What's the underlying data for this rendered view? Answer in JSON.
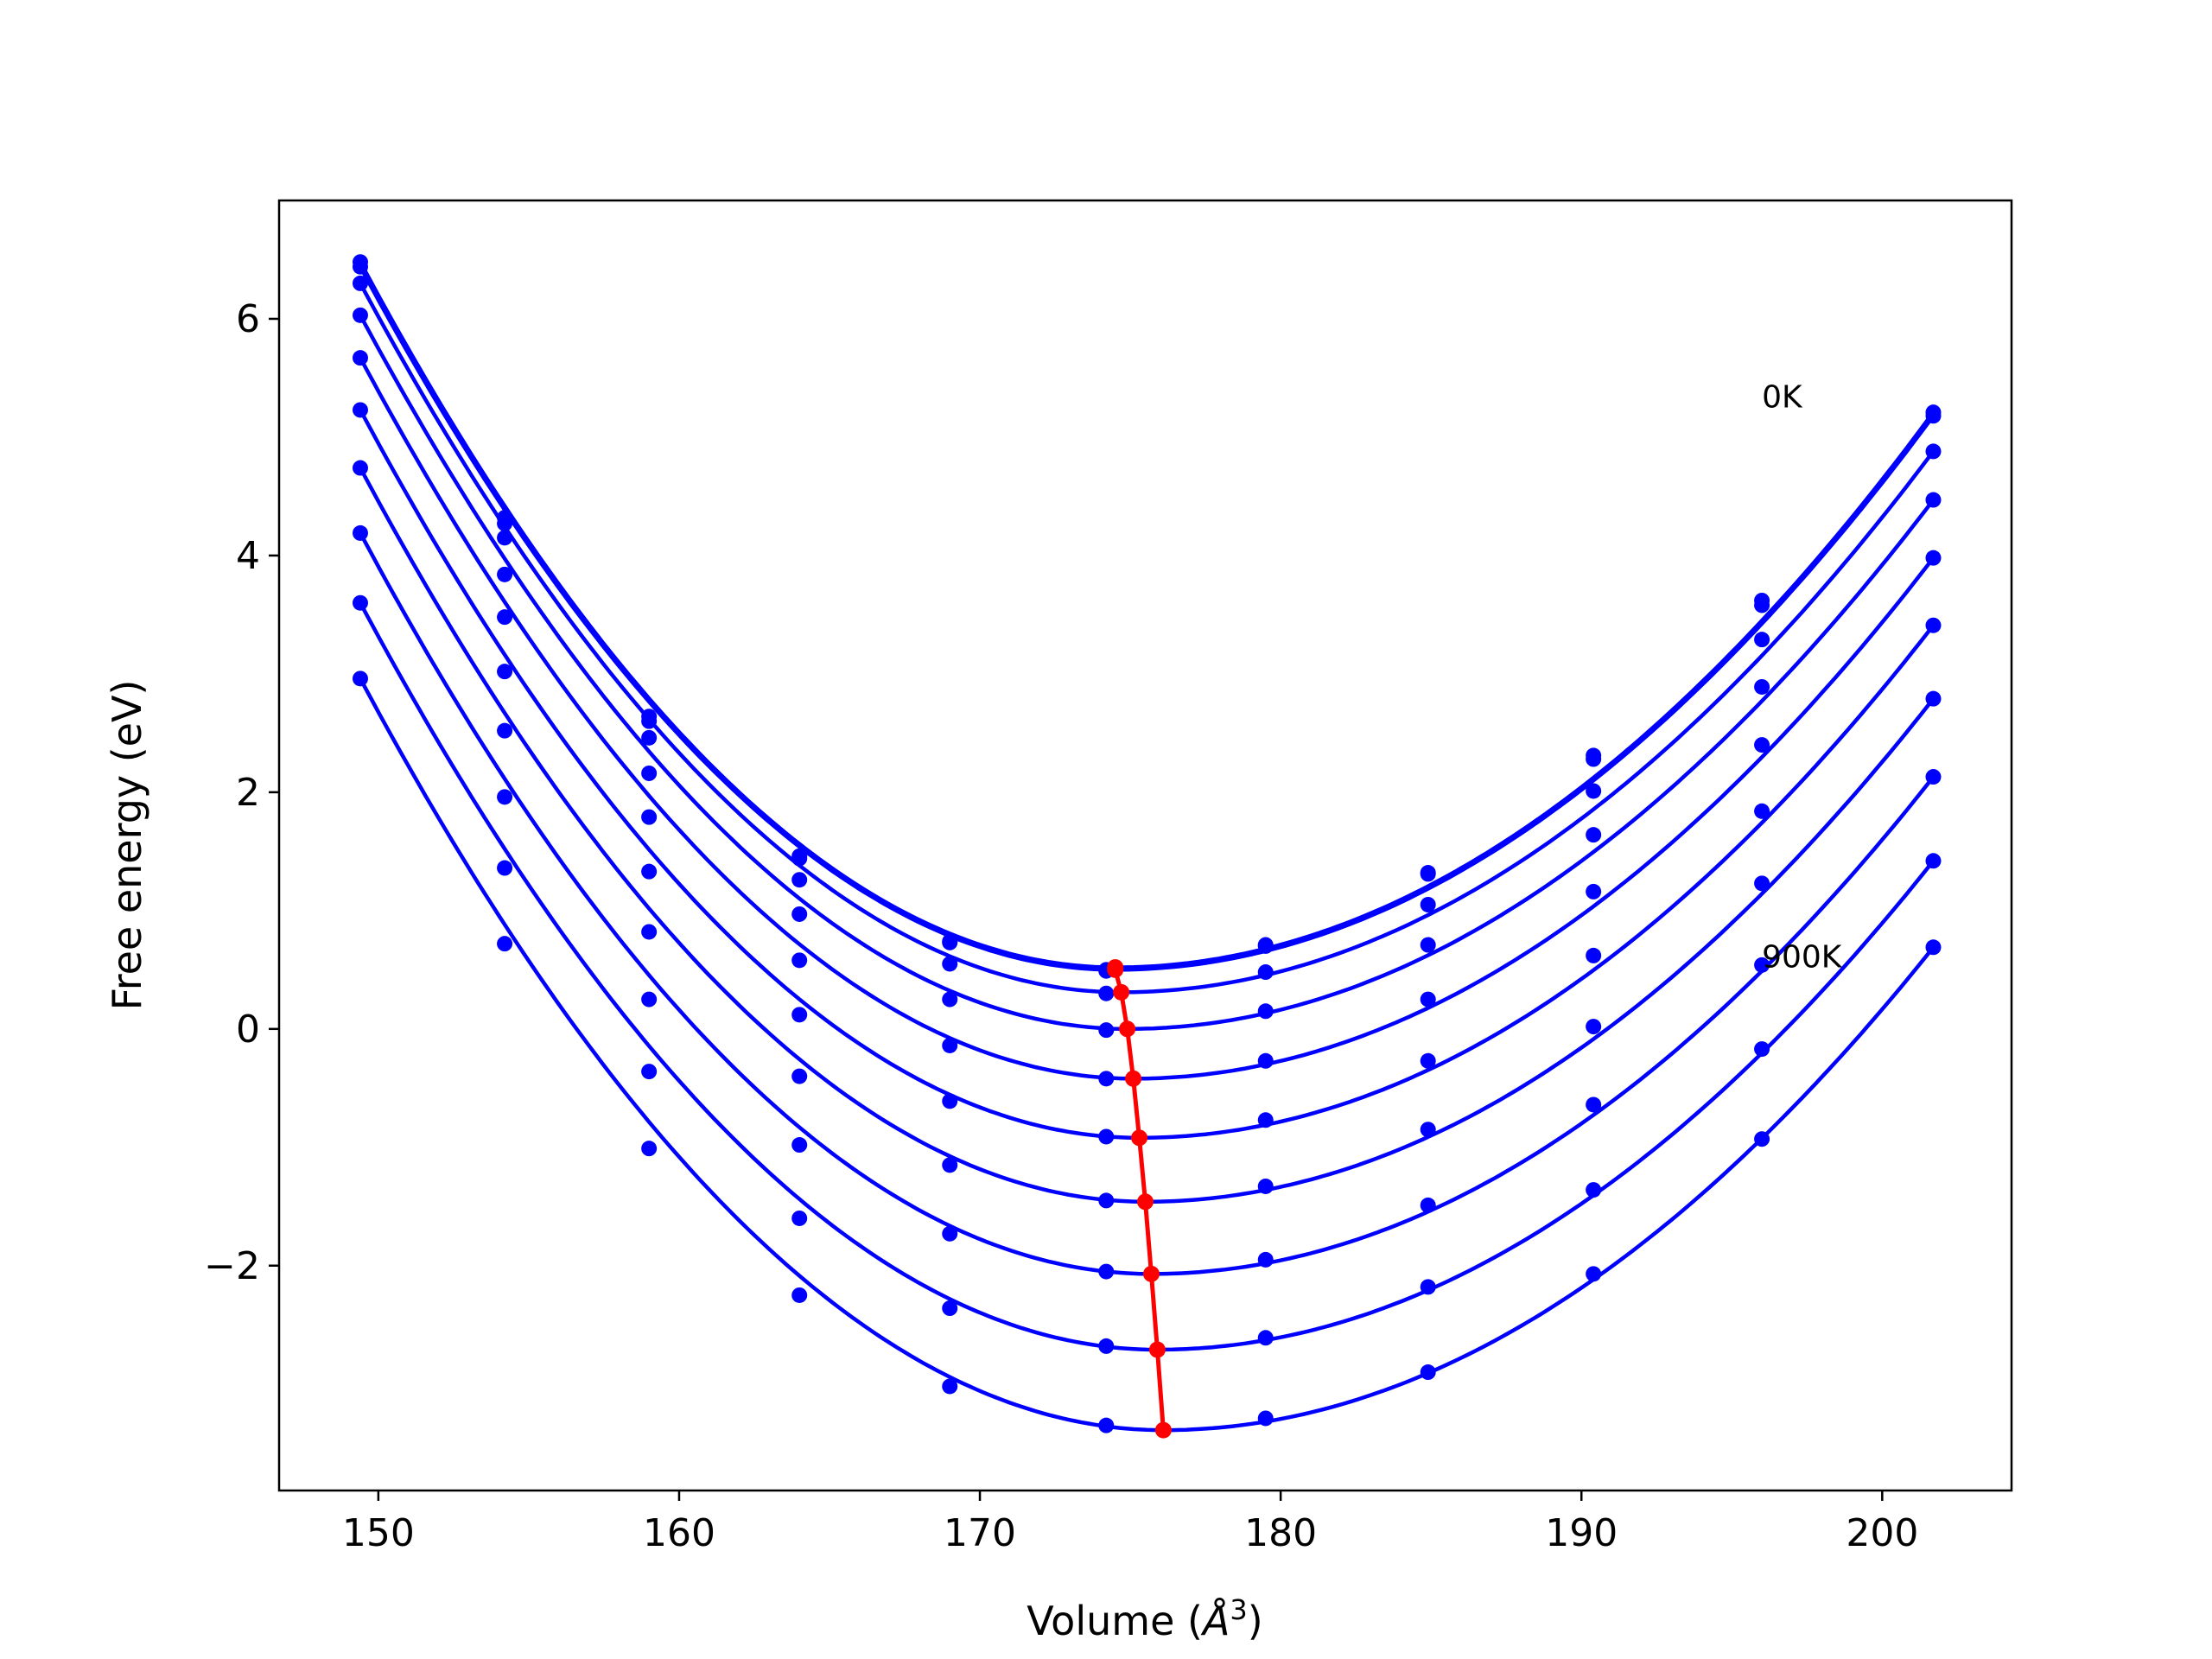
{
  "chart_data": {
    "type": "line",
    "title": "",
    "xlabel": "Volume ($\\AA^3$)",
    "xlabel_parts": {
      "main": "Volume (",
      "symbol": "Å",
      "sup": "3",
      "close": ")"
    },
    "ylabel": "Free energy (eV)",
    "xlim": [
      146.7,
      204.3
    ],
    "ylim": [
      -3.9,
      7.0
    ],
    "xticks": [
      150,
      160,
      170,
      180,
      190,
      200
    ],
    "xtick_labels": [
      "150",
      "160",
      "170",
      "180",
      "190",
      "200"
    ],
    "yticks": [
      -2,
      0,
      2,
      4,
      6
    ],
    "ytick_labels": [
      "−2",
      "0",
      "2",
      "4",
      "6"
    ],
    "grid": false,
    "legend": "none",
    "colors": {
      "series": "#0000ff",
      "minimum_path": "#ff0000",
      "axes": "#000000"
    },
    "x": [
      149.4,
      154.2,
      159.0,
      164.0,
      169.0,
      174.2,
      179.5,
      184.9,
      190.4,
      196.0,
      201.7
    ],
    "series": [
      {
        "values": [
          6.48,
          4.32,
          2.64,
          1.46,
          0.74,
          0.5,
          0.71,
          1.32,
          2.31,
          3.62,
          5.21
        ],
        "vmin": 174.5,
        "fmin": 0.52
      },
      {
        "values": [
          6.44,
          4.27,
          2.6,
          1.44,
          0.73,
          0.49,
          0.7,
          1.31,
          2.28,
          3.58,
          5.18
        ],
        "vmin": 174.5,
        "fmin": 0.5
      },
      {
        "values": [
          6.3,
          4.15,
          2.46,
          1.26,
          0.55,
          0.3,
          0.48,
          1.05,
          2.01,
          3.29,
          4.88
        ],
        "vmin": 174.7,
        "fmin": 0.31
      },
      {
        "values": [
          6.03,
          3.84,
          2.16,
          0.97,
          0.25,
          -0.01,
          0.15,
          0.71,
          1.64,
          2.89,
          4.47
        ],
        "vmin": 174.9,
        "fmin": 0.0
      },
      {
        "values": [
          5.67,
          3.48,
          1.79,
          0.58,
          -0.14,
          -0.42,
          -0.27,
          0.25,
          1.16,
          2.4,
          3.98
        ],
        "vmin": 175.1,
        "fmin": -0.42
      },
      {
        "values": [
          5.23,
          3.02,
          1.33,
          0.12,
          -0.61,
          -0.91,
          -0.77,
          -0.27,
          0.62,
          1.84,
          3.41
        ],
        "vmin": 175.3,
        "fmin": -0.92
      },
      {
        "values": [
          4.74,
          2.52,
          0.82,
          -0.4,
          -1.15,
          -1.45,
          -1.33,
          -0.85,
          0.02,
          1.23,
          2.79
        ],
        "vmin": 175.5,
        "fmin": -1.46
      },
      {
        "values": [
          4.19,
          1.96,
          0.25,
          -0.98,
          -1.73,
          -2.05,
          -1.95,
          -1.49,
          -0.64,
          0.54,
          2.13
        ],
        "vmin": 175.7,
        "fmin": -2.07
      },
      {
        "values": [
          3.6,
          1.36,
          -0.36,
          -1.6,
          -2.36,
          -2.68,
          -2.61,
          -2.18,
          -1.36,
          -0.17,
          1.42
        ],
        "vmin": 175.9,
        "fmin": -2.71
      },
      {
        "values": [
          2.96,
          0.72,
          -1.01,
          -2.25,
          -3.02,
          -3.35,
          -3.29,
          -2.9,
          -2.07,
          -0.93,
          0.69
        ],
        "vmin": 176.1,
        "fmin": -3.39
      }
    ],
    "minimum_path": {
      "x": [
        174.5,
        174.5,
        174.7,
        174.9,
        175.1,
        175.3,
        175.5,
        175.7,
        175.9,
        176.1
      ],
      "y": [
        0.52,
        0.5,
        0.31,
        0.0,
        -0.42,
        -0.92,
        -1.46,
        -2.07,
        -2.71,
        -3.39
      ]
    },
    "annotations": [
      {
        "text": "0K",
        "x": 196.0,
        "y": 5.25
      },
      {
        "text": "900K",
        "x": 196.0,
        "y": 0.52
      }
    ]
  }
}
